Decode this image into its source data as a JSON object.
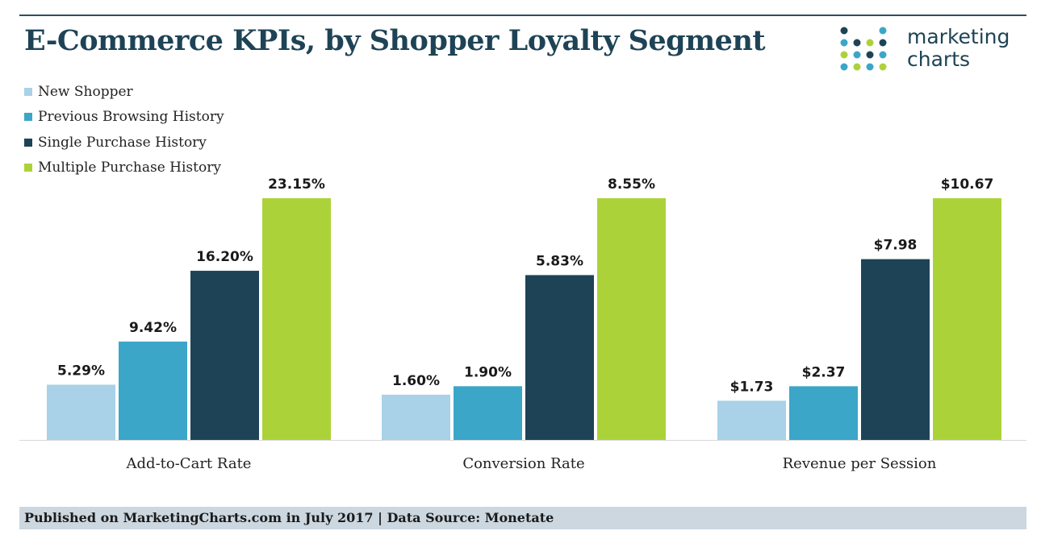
{
  "brand": {
    "line1": "marketing",
    "line2": "charts",
    "dot_colors": [
      "#1e4356",
      "#3ba6c8",
      "#acd23a",
      "#a9d1e8"
    ]
  },
  "footer": {
    "text": "Published on MarketingCharts.com in July 2017 | Data Source: Monetate"
  },
  "chart_data": {
    "type": "bar",
    "title": "E-Commerce KPIs, by Shopper Loyalty Segment",
    "categories": [
      "Add-to-Cart Rate",
      "Conversion Rate",
      "Revenue per Session"
    ],
    "legend_position": "top-left",
    "grid": false,
    "independent_scale_per_category": true,
    "series": [
      {
        "name": "New Shopper",
        "color": "#a9d1e8",
        "values": [
          5.29,
          1.6,
          1.73
        ],
        "labels": [
          "5.29%",
          "1.60%",
          "$1.73"
        ]
      },
      {
        "name": "Previous Browsing History",
        "color": "#3ba6c8",
        "values": [
          9.42,
          1.9,
          2.37
        ],
        "labels": [
          "9.42%",
          "1.90%",
          "$2.37"
        ]
      },
      {
        "name": "Single Purchase History",
        "color": "#1e4356",
        "values": [
          16.2,
          5.83,
          7.98
        ],
        "labels": [
          "16.20%",
          "5.83%",
          "$7.98"
        ]
      },
      {
        "name": "Multiple Purchase History",
        "color": "#acd23a",
        "values": [
          23.15,
          8.55,
          10.67
        ],
        "labels": [
          "23.15%",
          "8.55%",
          "$10.67"
        ]
      }
    ]
  }
}
